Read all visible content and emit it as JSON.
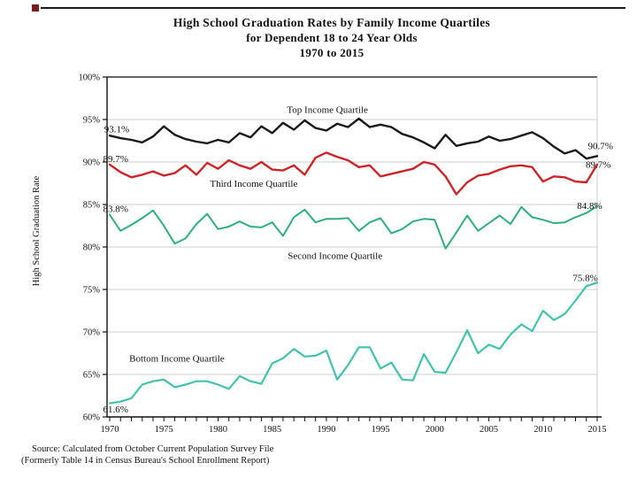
{
  "page": {
    "title_lines": [
      "High School Graduation Rates by Family Income Quartiles",
      "for Dependent 18 to 24 Year Olds",
      "1970 to 2015"
    ],
    "source_lines": [
      "Source: Calculated from October Current Population Survey File",
      "(Formerly Table 14 in Census Bureau's School Enrollment Report)"
    ]
  },
  "chart_data": {
    "type": "line",
    "title": "High School Graduation Rates by Family Income Quartiles for Dependent 18 to 24 Year Olds, 1970 to 2015",
    "xlabel": "",
    "ylabel": "High School Graduation Rate",
    "ylim": [
      60,
      100
    ],
    "ytick_step": 5,
    "ytick_suffix": "%",
    "grid": "horizontal",
    "legend": "inline-labels",
    "x": [
      1970,
      1971,
      1972,
      1973,
      1974,
      1975,
      1976,
      1977,
      1978,
      1979,
      1980,
      1981,
      1982,
      1983,
      1984,
      1985,
      1986,
      1987,
      1988,
      1989,
      1990,
      1991,
      1992,
      1993,
      1994,
      1995,
      1996,
      1997,
      1998,
      1999,
      2000,
      2001,
      2002,
      2003,
      2004,
      2005,
      2006,
      2007,
      2008,
      2009,
      2010,
      2011,
      2012,
      2013,
      2014,
      2015
    ],
    "xticks": [
      1970,
      1975,
      1980,
      1985,
      1990,
      1995,
      2000,
      2005,
      2010,
      2015
    ],
    "series": [
      {
        "id": "top-income-quartile",
        "name": "Top Income Quartile",
        "color": "#1a1a1a",
        "width": 2.4,
        "start_label": "93.1%",
        "end_label": "90.7%",
        "values": [
          93.1,
          92.8,
          92.6,
          92.3,
          93.0,
          94.2,
          93.2,
          92.7,
          92.4,
          92.2,
          92.6,
          92.3,
          93.4,
          92.9,
          94.2,
          93.4,
          94.6,
          93.8,
          94.9,
          94.0,
          93.7,
          94.5,
          94.1,
          95.1,
          94.1,
          94.4,
          94.1,
          93.3,
          92.9,
          92.3,
          91.6,
          93.2,
          91.9,
          92.2,
          92.4,
          93.0,
          92.5,
          92.7,
          93.1,
          93.5,
          92.8,
          91.8,
          91.0,
          91.4,
          90.4,
          90.7
        ]
      },
      {
        "id": "third-income-quartile",
        "name": "Third Income Quartile",
        "color": "#cc2529",
        "width": 2.4,
        "start_label": "89.7%",
        "end_label": "89.7%",
        "values": [
          89.7,
          88.8,
          88.2,
          88.5,
          88.9,
          88.4,
          88.7,
          89.6,
          88.5,
          89.9,
          89.2,
          90.2,
          89.6,
          89.2,
          90.0,
          89.1,
          89.0,
          89.6,
          88.5,
          90.5,
          91.1,
          90.6,
          90.2,
          89.4,
          89.6,
          88.3,
          88.6,
          88.9,
          89.2,
          90.0,
          89.7,
          88.3,
          86.2,
          87.6,
          88.4,
          88.6,
          89.1,
          89.5,
          89.6,
          89.4,
          87.7,
          88.3,
          88.2,
          87.7,
          87.6,
          89.7
        ]
      },
      {
        "id": "second-income-quartile",
        "name": "Second Income Quartile",
        "color": "#2fae7e",
        "width": 2.0,
        "start_label": "83.8%",
        "end_label": "84.8%",
        "values": [
          83.8,
          81.9,
          82.6,
          83.4,
          84.3,
          82.5,
          80.4,
          81.0,
          82.7,
          83.9,
          82.1,
          82.4,
          83.0,
          82.4,
          82.3,
          82.9,
          81.3,
          83.5,
          84.4,
          82.9,
          83.3,
          83.3,
          83.4,
          81.9,
          82.9,
          83.4,
          81.6,
          82.1,
          83.0,
          83.3,
          83.2,
          79.8,
          81.7,
          83.7,
          81.9,
          82.8,
          83.7,
          82.7,
          84.7,
          83.5,
          83.2,
          82.8,
          82.9,
          83.5,
          84.0,
          84.8
        ]
      },
      {
        "id": "bottom-income-quartile",
        "name": "Bottom Income Quartile",
        "color": "#41c3ab",
        "width": 2.2,
        "start_label": "61.6%",
        "end_label": "75.8%",
        "values": [
          61.6,
          61.8,
          62.2,
          63.8,
          64.2,
          64.4,
          63.5,
          63.8,
          64.2,
          64.2,
          63.8,
          63.3,
          64.8,
          64.2,
          63.9,
          66.3,
          66.9,
          68.0,
          67.1,
          67.2,
          67.8,
          64.4,
          66.1,
          68.2,
          68.2,
          65.7,
          66.4,
          64.4,
          64.3,
          67.4,
          65.3,
          65.2,
          67.6,
          70.2,
          67.5,
          68.5,
          68.0,
          69.7,
          70.9,
          70.1,
          72.5,
          71.4,
          72.1,
          73.7,
          75.4,
          75.8
        ]
      }
    ],
    "annotations": [
      {
        "name": "label-top-start",
        "text": "93.1%",
        "year": 1970.65,
        "value": 93.5
      },
      {
        "name": "label-third-start",
        "text": "89.7%",
        "year": 1970.55,
        "value": 90.0
      },
      {
        "name": "label-second-start",
        "text": "83.8%",
        "year": 1970.55,
        "value": 84.1
      },
      {
        "name": "label-bottom-start",
        "text": "61.6%",
        "year": 1970.55,
        "value": 60.5
      },
      {
        "name": "label-top-end",
        "text": "90.7%",
        "year": 2015.3,
        "value": 91.5
      },
      {
        "name": "label-third-end",
        "text": "89.7%",
        "year": 2015.1,
        "value": 89.3
      },
      {
        "name": "label-second-end",
        "text": "84.8%",
        "year": 2014.3,
        "value": 84.5
      },
      {
        "name": "label-bottom-end",
        "text": "75.8%",
        "year": 2013.9,
        "value": 76.0
      },
      {
        "name": "series-label-top",
        "text": "Top Income Quartile",
        "year": 1990.1,
        "value": 95.8
      },
      {
        "name": "series-label-third",
        "text": "Third Income Quartile",
        "year": 1983.3,
        "value": 87.1
      },
      {
        "name": "series-label-second",
        "text": "Second Income Quartile",
        "year": 1990.8,
        "value": 78.6
      },
      {
        "name": "series-label-bottom",
        "text": "Bottom Income Quartile",
        "year": 1976.2,
        "value": 66.5
      }
    ]
  }
}
